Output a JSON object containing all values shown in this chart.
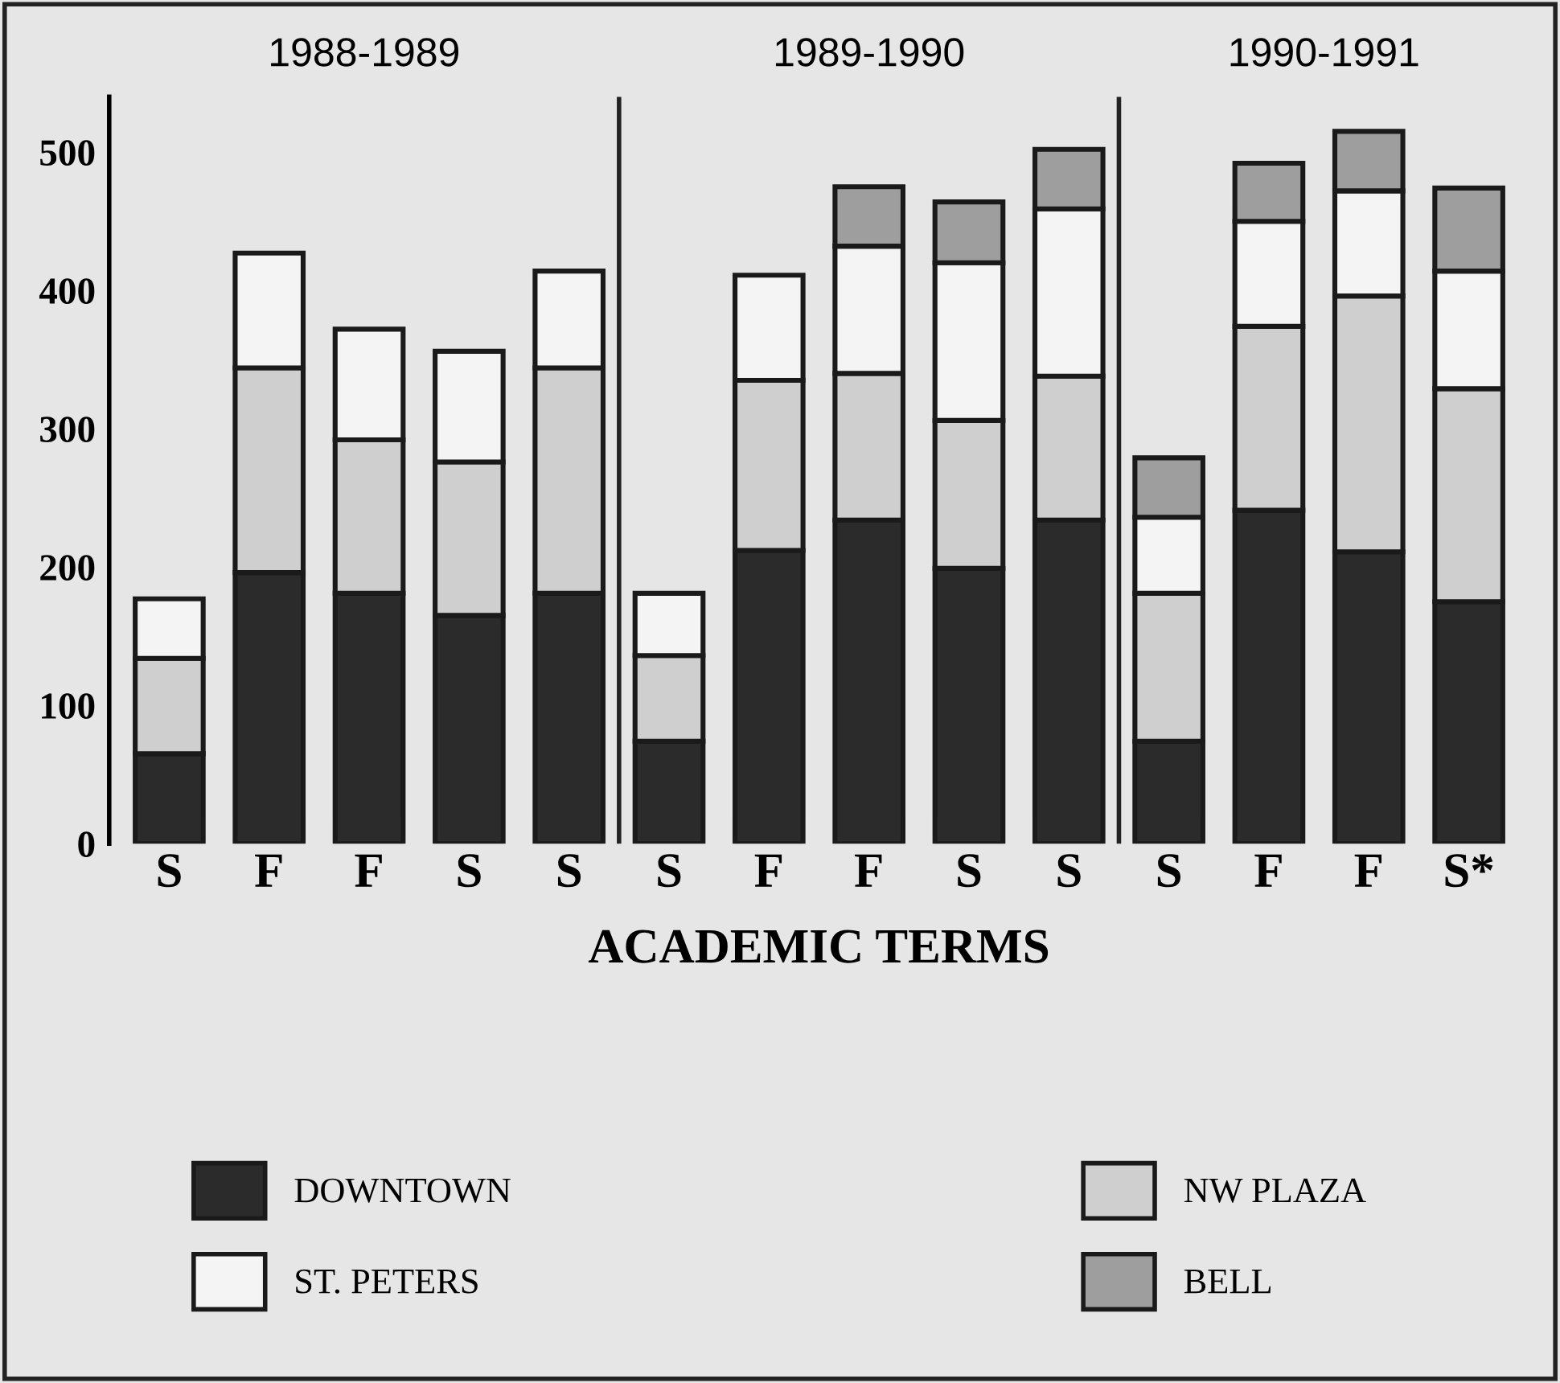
{
  "chart_data": {
    "type": "bar",
    "stacked": true,
    "xlabel": "ACADEMIC TERMS",
    "categories": [
      "S",
      "F",
      "F",
      "S",
      "S",
      "S",
      "F",
      "F",
      "S",
      "S",
      "S",
      "F",
      "F",
      "S*"
    ],
    "series": [
      {
        "name": "DOWNTOWN",
        "color": "#2b2b2b",
        "values": [
          65,
          196,
          181,
          165,
          181,
          74,
          212,
          234,
          199,
          234,
          74,
          241,
          211,
          175
        ]
      },
      {
        "name": "NW PLAZA",
        "color": "#cfcfcf",
        "values": [
          69,
          148,
          111,
          111,
          163,
          62,
          123,
          106,
          107,
          104,
          107,
          133,
          185,
          154
        ]
      },
      {
        "name": "ST. PETERS",
        "color": "#f4f4f4",
        "values": [
          43,
          83,
          80,
          80,
          70,
          45,
          76,
          92,
          114,
          121,
          55,
          76,
          76,
          85
        ]
      },
      {
        "name": "BELL",
        "color": "#9e9e9e",
        "values": [
          null,
          null,
          null,
          null,
          null,
          null,
          null,
          43,
          44,
          43,
          43,
          42,
          43,
          60
        ]
      }
    ],
    "ylim": [
      0,
      540
    ],
    "yticks": [
      0,
      100,
      200,
      300,
      400,
      500
    ],
    "grid": false,
    "legend": "bottom",
    "annotations": [
      "1988-1989",
      "1989-1990",
      "1990-1991"
    ]
  }
}
